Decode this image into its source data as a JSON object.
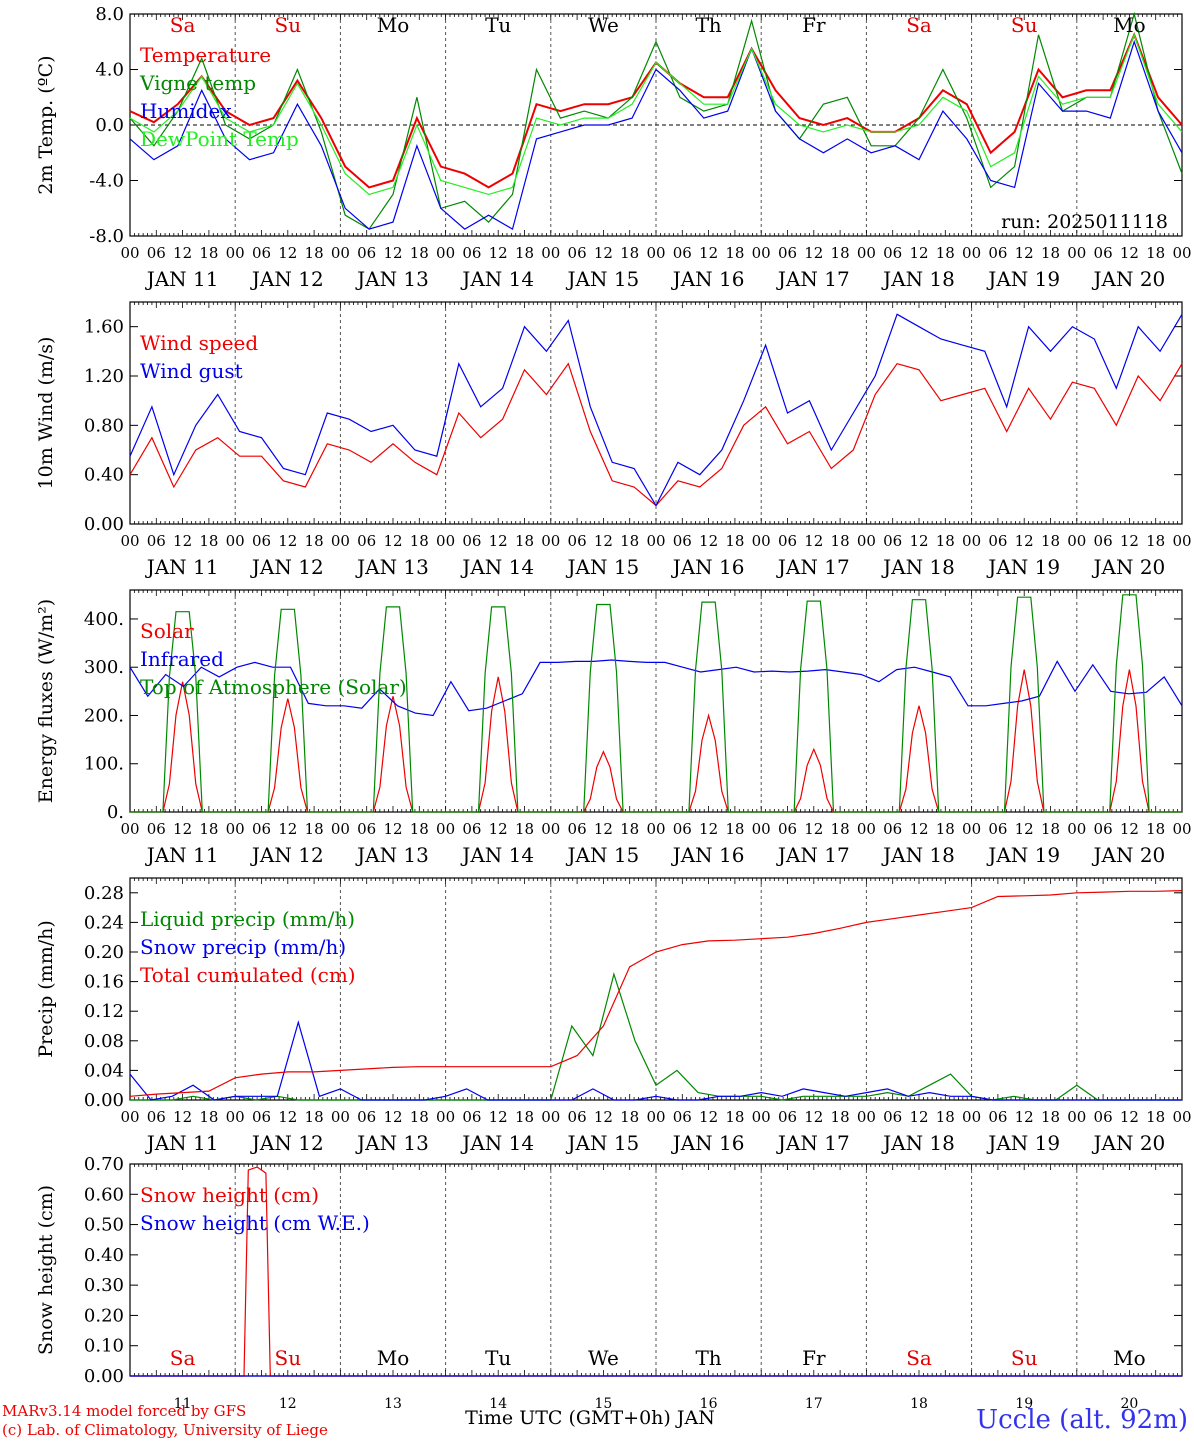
{
  "run_label": "run: 2025011118",
  "footer": {
    "credit_line1": "MARv3.14 model forced by GFS",
    "credit_line2": "(c) Lab. of Climatology, University of Liege",
    "xaxis_title": "Time UTC (GMT+0h) JAN",
    "station": "Uccle (alt. 92m)"
  },
  "time_axis": {
    "hour_labels": [
      "00",
      "06",
      "12",
      "18"
    ],
    "date_labels": [
      "JAN 11",
      "JAN 12",
      "JAN 13",
      "JAN 14",
      "JAN 15",
      "JAN 16",
      "JAN 17",
      "JAN 18",
      "JAN 19",
      "JAN 20"
    ],
    "day_numbers": [
      "11",
      "12",
      "13",
      "14",
      "15",
      "16",
      "17",
      "18",
      "19",
      "20"
    ],
    "weekday_labels": [
      "Sa",
      "Su",
      "Mo",
      "Tu",
      "We",
      "Th",
      "Fr",
      "Sa",
      "Su",
      "Mo"
    ],
    "weekday_colors": [
      "#e00000",
      "#e00000",
      "#000000",
      "#000000",
      "#000000",
      "#000000",
      "#000000",
      "#e00000",
      "#e00000",
      "#000000"
    ]
  },
  "colors": {
    "red": "#ee0000",
    "green": "#008800",
    "blue": "#0000ee",
    "lightgreen": "#22ee22"
  },
  "chart_data": [
    {
      "type": "line",
      "panel": "temperature",
      "ylabel": "2m Temp. (ºC)",
      "ylim": [
        -8,
        8
      ],
      "yticks": [
        "-8.0",
        "-4.0",
        "0.0",
        "4.0",
        "8.0"
      ],
      "xlim_hours": [
        0,
        240
      ],
      "step_hours": 6,
      "zero_line": true,
      "series": [
        {
          "name": "Temperature",
          "color": "#ee0000",
          "values": [
            1.0,
            0.2,
            1.5,
            3.5,
            1.0,
            0.0,
            0.5,
            3.2,
            0.5,
            -3.0,
            -4.5,
            -4.0,
            0.5,
            -3.0,
            -3.5,
            -4.5,
            -3.5,
            1.5,
            1.0,
            1.5,
            1.5,
            2.0,
            4.5,
            3.0,
            2.0,
            2.0,
            5.5,
            2.5,
            0.5,
            0.0,
            0.5,
            -0.5,
            -0.5,
            0.5,
            2.5,
            1.5,
            -2.0,
            -0.5,
            4.0,
            2.0,
            2.5,
            2.5,
            6.5,
            2.0,
            0.0
          ]
        },
        {
          "name": "Vigne temp",
          "color": "#008800",
          "values": [
            0.5,
            -1.5,
            1.0,
            4.8,
            0.0,
            -1.0,
            0.0,
            4.0,
            -0.5,
            -6.5,
            -7.5,
            -5.0,
            2.0,
            -6.0,
            -5.5,
            -7.0,
            -5.0,
            4.0,
            0.5,
            1.0,
            0.5,
            2.0,
            6.0,
            2.0,
            1.0,
            1.5,
            7.5,
            1.0,
            -1.0,
            1.5,
            2.0,
            -1.5,
            -1.5,
            0.5,
            4.0,
            0.5,
            -4.5,
            -3.0,
            6.5,
            1.0,
            2.0,
            2.0,
            8.0,
            1.0,
            -3.5
          ]
        },
        {
          "name": "Humidex",
          "color": "#0000ee",
          "values": [
            -1.0,
            -2.5,
            -1.5,
            2.5,
            -1.0,
            -2.5,
            -2.0,
            1.5,
            -1.5,
            -6.0,
            -7.5,
            -7.0,
            -1.5,
            -6.0,
            -7.5,
            -6.5,
            -7.5,
            -1.0,
            -0.5,
            0.0,
            0.0,
            0.5,
            4.0,
            2.5,
            0.5,
            1.0,
            5.5,
            1.0,
            -1.0,
            -2.0,
            -1.0,
            -2.0,
            -1.5,
            -2.5,
            1.0,
            -1.0,
            -4.0,
            -4.5,
            3.0,
            1.0,
            1.0,
            0.5,
            6.0,
            1.0,
            -2.0
          ]
        },
        {
          "name": "DewPoint Temp",
          "color": "#22ee22",
          "values": [
            0.5,
            -0.5,
            1.0,
            3.5,
            0.5,
            -0.5,
            0.0,
            3.0,
            0.0,
            -3.5,
            -5.0,
            -4.5,
            0.0,
            -4.0,
            -4.5,
            -5.0,
            -4.5,
            0.5,
            0.0,
            0.5,
            0.5,
            1.5,
            4.5,
            3.0,
            1.5,
            1.5,
            5.5,
            1.5,
            0.0,
            -0.5,
            0.0,
            -0.5,
            -0.5,
            0.0,
            2.0,
            1.0,
            -3.0,
            -2.0,
            3.5,
            1.5,
            2.0,
            2.0,
            6.5,
            1.5,
            -0.5
          ]
        }
      ]
    },
    {
      "type": "line",
      "panel": "wind",
      "ylabel": "10m Wind (m/s)",
      "ylim": [
        0,
        1.8
      ],
      "yticks": [
        "0.00",
        "0.40",
        "0.80",
        "1.20",
        "1.60"
      ],
      "xlim_hours": [
        0,
        240
      ],
      "step_hours": 6,
      "series": [
        {
          "name": "Wind speed",
          "color": "#ee0000",
          "values": [
            0.4,
            0.7,
            0.3,
            0.6,
            0.7,
            0.55,
            0.55,
            0.35,
            0.3,
            0.65,
            0.6,
            0.5,
            0.65,
            0.5,
            0.4,
            0.9,
            0.7,
            0.85,
            1.25,
            1.05,
            1.3,
            0.75,
            0.35,
            0.3,
            0.15,
            0.35,
            0.3,
            0.45,
            0.8,
            0.95,
            0.65,
            0.75,
            0.45,
            0.6,
            1.05,
            1.3,
            1.25,
            1.0,
            1.05,
            1.1,
            0.75,
            1.1,
            0.85,
            1.15,
            1.1,
            0.8,
            1.2,
            1.0,
            1.3
          ]
        },
        {
          "name": "Wind gust",
          "color": "#0000ee",
          "values": [
            0.55,
            0.95,
            0.4,
            0.8,
            1.05,
            0.75,
            0.7,
            0.45,
            0.4,
            0.9,
            0.85,
            0.75,
            0.8,
            0.6,
            0.55,
            1.3,
            0.95,
            1.1,
            1.6,
            1.4,
            1.65,
            0.95,
            0.5,
            0.45,
            0.15,
            0.5,
            0.4,
            0.6,
            1.0,
            1.45,
            0.9,
            1.0,
            0.6,
            0.9,
            1.2,
            1.7,
            1.6,
            1.5,
            1.45,
            1.4,
            0.95,
            1.6,
            1.4,
            1.6,
            1.5,
            1.1,
            1.6,
            1.4,
            1.7
          ]
        }
      ]
    },
    {
      "type": "line",
      "panel": "energy",
      "ylabel": "Energy fluxes (W/m²)",
      "ylim": [
        0,
        460
      ],
      "yticks": [
        "0.",
        "100.",
        "200.",
        "300.",
        "400."
      ],
      "xlim_hours": [
        0,
        240
      ],
      "step_hours": 3,
      "series": [
        {
          "name": "Solar",
          "color": "#ee0000",
          "days_peak": [
            270,
            235,
            240,
            280,
            125,
            200,
            130,
            220,
            295,
            295
          ]
        },
        {
          "name": "Infrared",
          "color": "#0000ee",
          "values": [
            300,
            240,
            285,
            260,
            300,
            280,
            300,
            310,
            300,
            300,
            225,
            220,
            220,
            215,
            255,
            220,
            205,
            200,
            270,
            210,
            215,
            230,
            245,
            310,
            310,
            312,
            312,
            315,
            312,
            310,
            310,
            300,
            290,
            295,
            300,
            290,
            292,
            290,
            292,
            295,
            290,
            285,
            270,
            295,
            300,
            290,
            280,
            220,
            220,
            225,
            230,
            240,
            312,
            250,
            305,
            250,
            245,
            248,
            280,
            220
          ]
        },
        {
          "name": "Top of Atmosphere (Solar)",
          "color": "#008800",
          "days_peak": [
            415,
            420,
            425,
            425,
            430,
            435,
            437,
            440,
            445,
            450
          ]
        }
      ]
    },
    {
      "type": "line",
      "panel": "precip",
      "ylabel": "Precip (mm/h)",
      "ylim": [
        0,
        0.3
      ],
      "yticks": [
        "0.00",
        "0.04",
        "0.08",
        "0.12",
        "0.16",
        "0.20",
        "0.24",
        "0.28"
      ],
      "xlim_hours": [
        0,
        240
      ],
      "step_hours": 6,
      "series": [
        {
          "name": "Liquid precip (mm/h)",
          "color": "#008800",
          "values": [
            0,
            0,
            0,
            0.005,
            0,
            0.005,
            0,
            0.005,
            0,
            0,
            0,
            0,
            0,
            0,
            0,
            0,
            0,
            0,
            0,
            0,
            0,
            0.1,
            0.06,
            0.17,
            0.08,
            0.02,
            0.04,
            0.01,
            0.005,
            0.005,
            0.005,
            0,
            0.005,
            0.005,
            0.005,
            0.005,
            0.01,
            0.005,
            0.02,
            0.035,
            0.005,
            0,
            0.005,
            0,
            0,
            0.02,
            0,
            0,
            0,
            0,
            0
          ]
        },
        {
          "name": "Snow precip (mm/h)",
          "color": "#0000ee",
          "values": [
            0.035,
            0,
            0.005,
            0.02,
            0,
            0.005,
            0.005,
            0.005,
            0.105,
            0.005,
            0.015,
            0,
            0,
            0,
            0,
            0.005,
            0.015,
            0,
            0,
            0,
            0,
            0,
            0.015,
            0,
            0,
            0.005,
            0,
            0,
            0.005,
            0.005,
            0.01,
            0.005,
            0.015,
            0.01,
            0.005,
            0.01,
            0.015,
            0.005,
            0.01,
            0.005,
            0.005,
            0,
            0,
            0,
            0,
            0,
            0,
            0,
            0,
            0,
            0
          ]
        },
        {
          "name": "Total cumulated (cm)",
          "color": "#ee0000",
          "values": [
            0.005,
            0.008,
            0.01,
            0.012,
            0.03,
            0.035,
            0.038,
            0.038,
            0.04,
            0.042,
            0.044,
            0.045,
            0.045,
            0.045,
            0.045,
            0.045,
            0.045,
            0.06,
            0.1,
            0.18,
            0.2,
            0.21,
            0.215,
            0.216,
            0.218,
            0.22,
            0.225,
            0.232,
            0.24,
            0.245,
            0.25,
            0.255,
            0.26,
            0.275,
            0.276,
            0.277,
            0.28,
            0.281,
            0.282,
            0.282,
            0.283
          ]
        }
      ]
    },
    {
      "type": "line",
      "panel": "snow",
      "ylabel": "Snow height (cm)",
      "ylim": [
        0,
        0.7
      ],
      "yticks": [
        "0.00",
        "0.10",
        "0.20",
        "0.30",
        "0.40",
        "0.50",
        "0.60",
        "0.70"
      ],
      "xlim_hours": [
        0,
        240
      ],
      "series": [
        {
          "name": "Snow height (cm)",
          "color": "#ee0000",
          "points": [
            [
              0,
              0
            ],
            [
              26,
              0
            ],
            [
              27,
              0.68
            ],
            [
              29,
              0.69
            ],
            [
              31,
              0.67
            ],
            [
              32,
              0
            ],
            [
              240,
              0
            ]
          ]
        },
        {
          "name": "Snow height (cm W.E.)",
          "color": "#0000ee",
          "points": [
            [
              0,
              0
            ],
            [
              240,
              0
            ]
          ]
        }
      ]
    }
  ]
}
